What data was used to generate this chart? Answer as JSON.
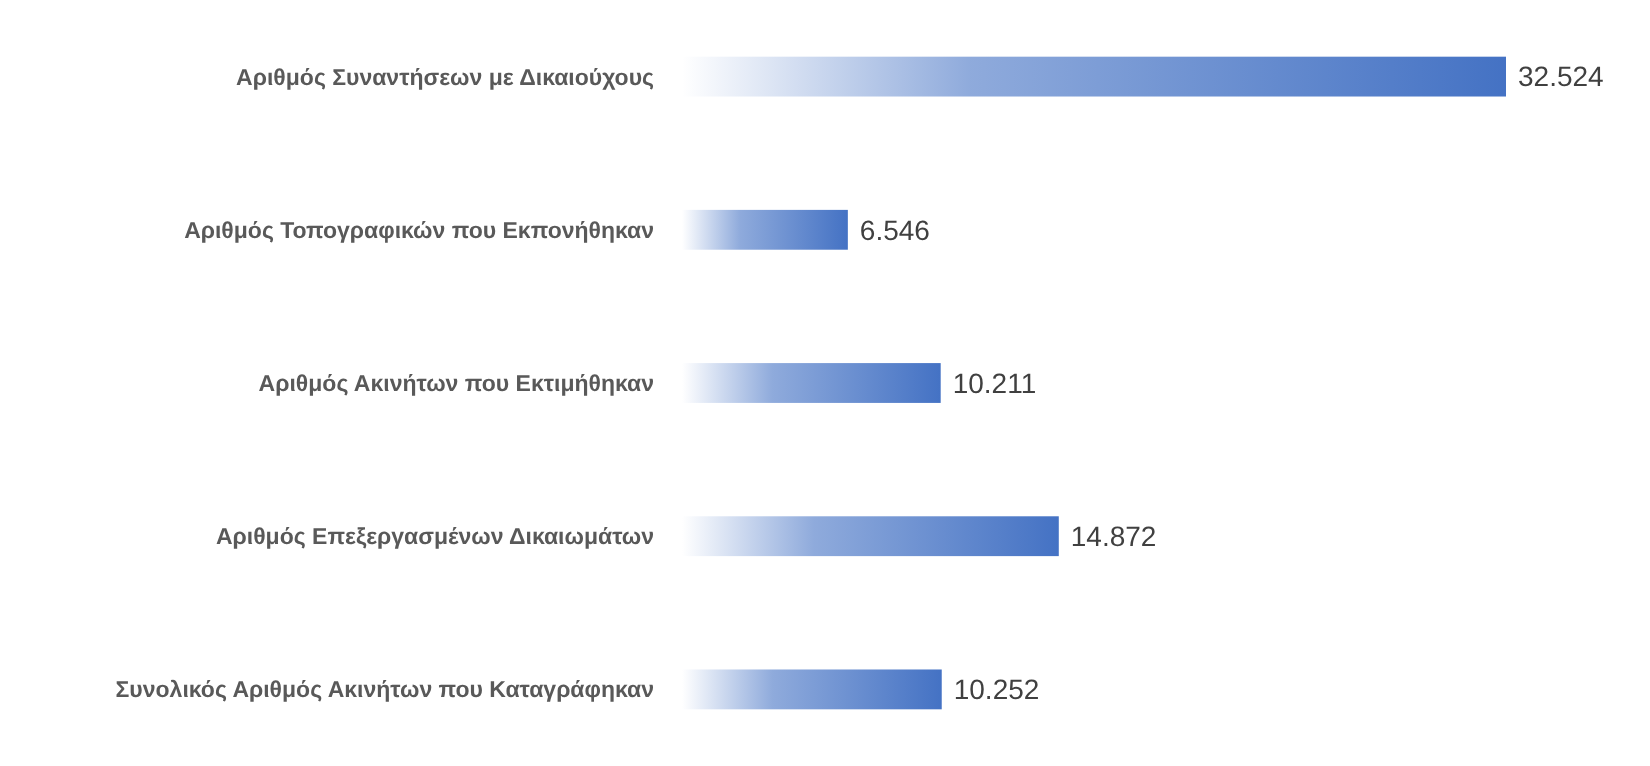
{
  "chart_data": {
    "type": "bar",
    "orientation": "horizontal",
    "categories": [
      "Αριθμός Συναντήσεων με Δικαιούχους",
      "Αριθμός Τοπογραφικών που Εκπονήθηκαν",
      "Αριθμός Ακινήτων που Εκτιμήθηκαν",
      "Αριθμός Επεξεργασμένων Δικαιωμάτων",
      "Συνολικός Αριθμός Ακινήτων που Καταγράφηκαν"
    ],
    "values": [
      32524,
      6546,
      10211,
      14872,
      10252
    ],
    "value_labels": [
      "32.524",
      "6.546",
      "10.211",
      "14.872",
      "10.252"
    ],
    "color": "#4472c4"
  }
}
